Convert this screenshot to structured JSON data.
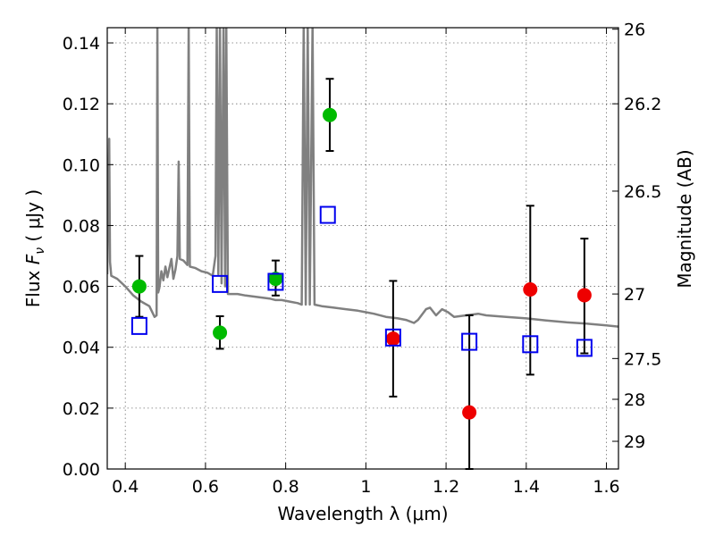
{
  "chart_data": {
    "type": "scatter",
    "title": "",
    "xlabel": "Wavelength  λ (μm)",
    "ylabel": "Flux  F<sub>ν</sub> ( μJy )",
    "ylabel_parts": {
      "prefix": "Flux  ",
      "var": "F",
      "sub": "ν",
      "suffix": "  ( μJy )"
    },
    "ylabel_right": "Magnitude (AB)",
    "xlim": [
      0.355,
      1.63
    ],
    "ylim": [
      0.0,
      0.145
    ],
    "grid": true,
    "x_ticks": [
      {
        "value": 0.4,
        "label": "0.4"
      },
      {
        "value": 0.6,
        "label": "0.6"
      },
      {
        "value": 0.8,
        "label": "0.8"
      },
      {
        "value": 1.0,
        "label": "1"
      },
      {
        "value": 1.2,
        "label": "1.2"
      },
      {
        "value": 1.4,
        "label": "1.4"
      },
      {
        "value": 1.6,
        "label": "1.6"
      }
    ],
    "y_ticks": [
      {
        "value": 0.0,
        "label": "0.00"
      },
      {
        "value": 0.02,
        "label": "0.02"
      },
      {
        "value": 0.04,
        "label": "0.04"
      },
      {
        "value": 0.06,
        "label": "0.06"
      },
      {
        "value": 0.08,
        "label": "0.08"
      },
      {
        "value": 0.1,
        "label": "0.10"
      },
      {
        "value": 0.12,
        "label": "0.12"
      },
      {
        "value": 0.14,
        "label": "0.14"
      }
    ],
    "right_ticks": [
      {
        "flux": 0.1445,
        "label": "26"
      },
      {
        "flux": 0.12,
        "label": "26.2"
      },
      {
        "flux": 0.0913,
        "label": "26.5"
      },
      {
        "flux": 0.0575,
        "label": "27"
      },
      {
        "flux": 0.0363,
        "label": "27.5"
      },
      {
        "flux": 0.0229,
        "label": "28"
      },
      {
        "flux": 0.0091,
        "label": "29"
      }
    ],
    "series": [
      {
        "marker": "circle",
        "color": "#00bb00",
        "points": [
          {
            "x": 0.435,
            "y": 0.06,
            "err_lo": 0.05,
            "err_hi": 0.07
          },
          {
            "x": 0.636,
            "y": 0.0448,
            "err_lo": 0.0395,
            "err_hi": 0.0502
          },
          {
            "x": 0.775,
            "y": 0.0625,
            "err_lo": 0.057,
            "err_hi": 0.0685
          },
          {
            "x": 0.91,
            "y": 0.1163,
            "err_lo": 0.1045,
            "err_hi": 0.1282
          }
        ]
      },
      {
        "marker": "circle",
        "color": "#ee0000",
        "points": [
          {
            "x": 1.068,
            "y": 0.0428,
            "err_lo": 0.0238,
            "err_hi": 0.0618
          },
          {
            "x": 1.258,
            "y": 0.0186,
            "err_lo": 0.0,
            "err_hi": 0.0505
          },
          {
            "x": 1.41,
            "y": 0.059,
            "err_lo": 0.031,
            "err_hi": 0.0865
          },
          {
            "x": 1.545,
            "y": 0.0571,
            "err_lo": 0.038,
            "err_hi": 0.0757
          }
        ]
      },
      {
        "marker": "open-square",
        "color": "#0000ee",
        "points": [
          {
            "x": 0.435,
            "y": 0.047
          },
          {
            "x": 0.636,
            "y": 0.0608
          },
          {
            "x": 0.775,
            "y": 0.0615
          },
          {
            "x": 0.905,
            "y": 0.0835
          },
          {
            "x": 1.068,
            "y": 0.0432
          },
          {
            "x": 1.258,
            "y": 0.0418
          },
          {
            "x": 1.41,
            "y": 0.041
          },
          {
            "x": 1.545,
            "y": 0.0398
          }
        ]
      },
      {
        "marker": "line",
        "color": "#808080",
        "points": [
          {
            "x": 0.355,
            "y": 0.064
          },
          {
            "x": 0.358,
            "y": 0.095
          },
          {
            "x": 0.36,
            "y": 0.1085
          },
          {
            "x": 0.362,
            "y": 0.068
          },
          {
            "x": 0.365,
            "y": 0.0635
          },
          {
            "x": 0.38,
            "y": 0.0625
          },
          {
            "x": 0.4,
            "y": 0.06
          },
          {
            "x": 0.42,
            "y": 0.057
          },
          {
            "x": 0.44,
            "y": 0.055
          },
          {
            "x": 0.46,
            "y": 0.0535
          },
          {
            "x": 0.473,
            "y": 0.05
          },
          {
            "x": 0.478,
            "y": 0.0505
          },
          {
            "x": 0.48,
            "y": 0.146
          },
          {
            "x": 0.482,
            "y": 0.058
          },
          {
            "x": 0.485,
            "y": 0.0595
          },
          {
            "x": 0.49,
            "y": 0.065
          },
          {
            "x": 0.495,
            "y": 0.062
          },
          {
            "x": 0.5,
            "y": 0.0665
          },
          {
            "x": 0.505,
            "y": 0.063
          },
          {
            "x": 0.51,
            "y": 0.066
          },
          {
            "x": 0.515,
            "y": 0.069
          },
          {
            "x": 0.52,
            "y": 0.0625
          },
          {
            "x": 0.525,
            "y": 0.0655
          },
          {
            "x": 0.53,
            "y": 0.07
          },
          {
            "x": 0.533,
            "y": 0.101
          },
          {
            "x": 0.536,
            "y": 0.069
          },
          {
            "x": 0.545,
            "y": 0.0685
          },
          {
            "x": 0.555,
            "y": 0.067
          },
          {
            "x": 0.558,
            "y": 0.146
          },
          {
            "x": 0.561,
            "y": 0.0665
          },
          {
            "x": 0.575,
            "y": 0.066
          },
          {
            "x": 0.59,
            "y": 0.065
          },
          {
            "x": 0.605,
            "y": 0.0645
          },
          {
            "x": 0.618,
            "y": 0.0635
          },
          {
            "x": 0.625,
            "y": 0.07
          },
          {
            "x": 0.628,
            "y": 0.146
          },
          {
            "x": 0.632,
            "y": 0.064
          },
          {
            "x": 0.636,
            "y": 0.146
          },
          {
            "x": 0.64,
            "y": 0.061
          },
          {
            "x": 0.645,
            "y": 0.146
          },
          {
            "x": 0.649,
            "y": 0.06
          },
          {
            "x": 0.652,
            "y": 0.146
          },
          {
            "x": 0.656,
            "y": 0.0575
          },
          {
            "x": 0.68,
            "y": 0.0575
          },
          {
            "x": 0.7,
            "y": 0.057
          },
          {
            "x": 0.73,
            "y": 0.0565
          },
          {
            "x": 0.76,
            "y": 0.056
          },
          {
            "x": 0.775,
            "y": 0.0555
          },
          {
            "x": 0.79,
            "y": 0.0555
          },
          {
            "x": 0.81,
            "y": 0.055
          },
          {
            "x": 0.83,
            "y": 0.0545
          },
          {
            "x": 0.84,
            "y": 0.054
          },
          {
            "x": 0.845,
            "y": 0.146
          },
          {
            "x": 0.85,
            "y": 0.054
          },
          {
            "x": 0.855,
            "y": 0.146
          },
          {
            "x": 0.86,
            "y": 0.054
          },
          {
            "x": 0.867,
            "y": 0.146
          },
          {
            "x": 0.872,
            "y": 0.054
          },
          {
            "x": 0.89,
            "y": 0.0535
          },
          {
            "x": 0.92,
            "y": 0.053
          },
          {
            "x": 0.95,
            "y": 0.0525
          },
          {
            "x": 0.98,
            "y": 0.052
          },
          {
            "x": 1.0,
            "y": 0.0515
          },
          {
            "x": 1.02,
            "y": 0.051
          },
          {
            "x": 1.05,
            "y": 0.05
          },
          {
            "x": 1.08,
            "y": 0.0495
          },
          {
            "x": 1.1,
            "y": 0.049
          },
          {
            "x": 1.12,
            "y": 0.048
          },
          {
            "x": 1.13,
            "y": 0.049
          },
          {
            "x": 1.15,
            "y": 0.0525
          },
          {
            "x": 1.16,
            "y": 0.053
          },
          {
            "x": 1.175,
            "y": 0.0505
          },
          {
            "x": 1.19,
            "y": 0.0525
          },
          {
            "x": 1.205,
            "y": 0.0515
          },
          {
            "x": 1.22,
            "y": 0.05
          },
          {
            "x": 1.25,
            "y": 0.0505
          },
          {
            "x": 1.28,
            "y": 0.051
          },
          {
            "x": 1.3,
            "y": 0.0505
          },
          {
            "x": 1.35,
            "y": 0.05
          },
          {
            "x": 1.4,
            "y": 0.0495
          },
          {
            "x": 1.45,
            "y": 0.0488
          },
          {
            "x": 1.5,
            "y": 0.0482
          },
          {
            "x": 1.55,
            "y": 0.0478
          },
          {
            "x": 1.6,
            "y": 0.0472
          },
          {
            "x": 1.63,
            "y": 0.0468
          }
        ]
      }
    ]
  }
}
